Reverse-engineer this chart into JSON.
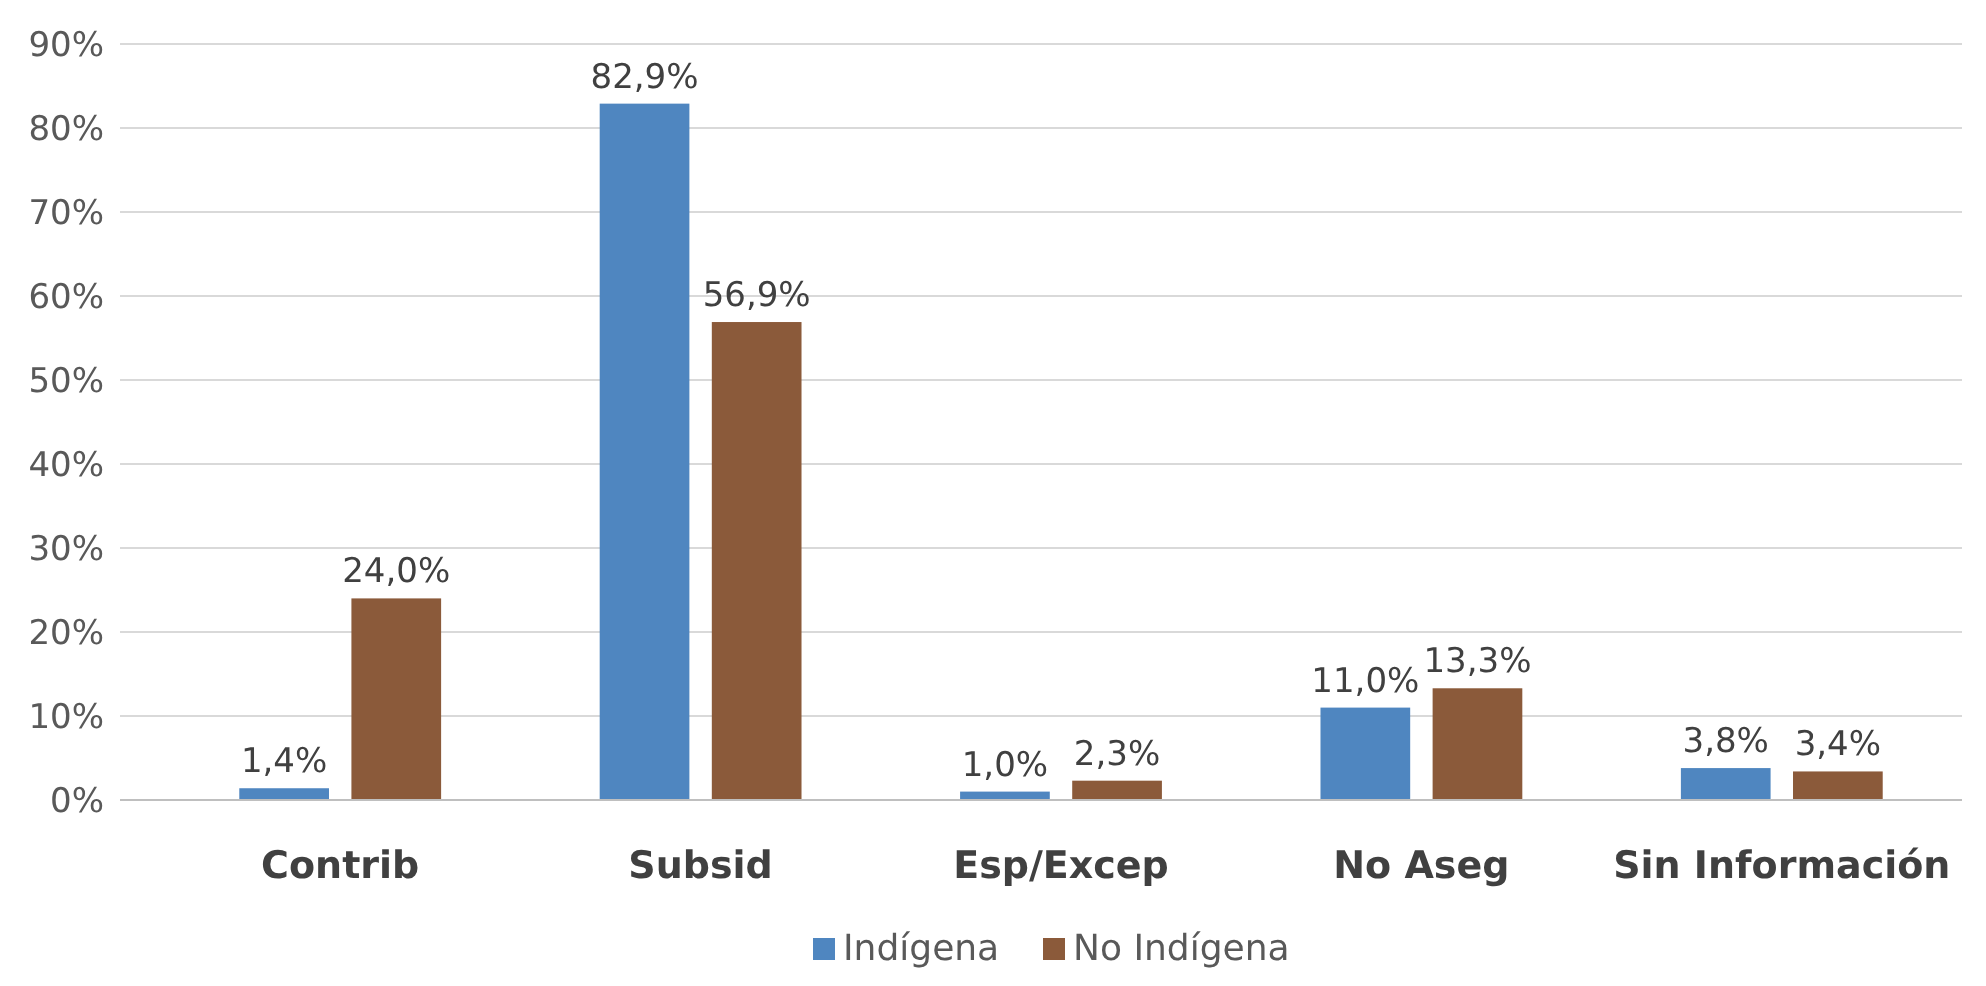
{
  "chart_data": {
    "type": "bar",
    "categories": [
      "Contrib",
      "Subsid",
      "Esp/Excep",
      "No Aseg",
      "Sin Información"
    ],
    "series": [
      {
        "name": "Indígena",
        "color": "#4f86c0",
        "values": [
          1.4,
          82.9,
          1.0,
          11.0,
          3.8
        ],
        "value_labels": [
          "1,4%",
          "82,9%",
          "1,0%",
          "11,0%",
          "3,8%"
        ]
      },
      {
        "name": "No Indígena",
        "color": "#8b5a3a",
        "values": [
          24.0,
          56.9,
          2.3,
          13.3,
          3.4
        ],
        "value_labels": [
          "24,0%",
          "56,9%",
          "2,3%",
          "13,3%",
          "3,4%"
        ]
      }
    ],
    "ylim": [
      0,
      90
    ],
    "yticks": [
      {
        "value": 0,
        "label": "0%"
      },
      {
        "value": 10,
        "label": "10%"
      },
      {
        "value": 20,
        "label": "20%"
      },
      {
        "value": 30,
        "label": "30%"
      },
      {
        "value": 40,
        "label": "40%"
      },
      {
        "value": 50,
        "label": "50%"
      },
      {
        "value": 60,
        "label": "60%"
      },
      {
        "value": 70,
        "label": "70%"
      },
      {
        "value": 80,
        "label": "80%"
      },
      {
        "value": 90,
        "label": "90%"
      }
    ],
    "grid": "y",
    "legend": "bottom"
  }
}
